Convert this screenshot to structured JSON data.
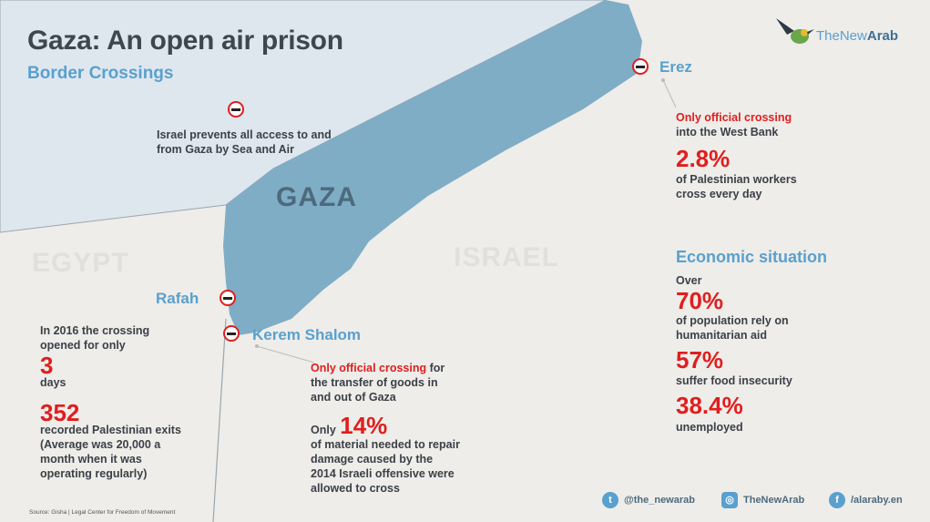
{
  "title": "Gaza: An open air prison",
  "subtitle": "Border Crossings",
  "logo": {
    "text_a": "TheNew",
    "text_b": "Arab"
  },
  "map_labels": {
    "gaza": "GAZA",
    "egypt": "EGYPT",
    "israel": "ISRAEL"
  },
  "sea_air": {
    "line1": "Israel prevents all access to and",
    "line2": "from Gaza by Sea and Air"
  },
  "erez": {
    "name": "Erez",
    "highlight": "Only official crossing",
    "desc": "into the West Bank",
    "stat": "2.8%",
    "stat_line1": "of Palestinian workers",
    "stat_line2": "cross every day"
  },
  "rafah": {
    "name": "Rafah",
    "line1": "In 2016 the crossing",
    "line2": "opened for only",
    "days_value": "3",
    "days_label": "days",
    "exits_value": "352",
    "exits_lines": [
      "recorded Palestinian exits",
      "(Average was 20,000 a",
      "month when it was",
      "operating regularly)"
    ]
  },
  "kerem": {
    "name": "Kerem Shalom",
    "highlight": "Only official crossing",
    "desc_first_suffix": " for",
    "desc_lines": [
      "the transfer of goods in",
      "and out of Gaza"
    ],
    "only_prefix": "Only",
    "stat": "14%",
    "stat_lines": [
      "of material needed to repair",
      "damage caused by the",
      "2014 Israeli offensive were",
      "allowed to cross"
    ]
  },
  "economic": {
    "heading": "Economic situation",
    "over": "Over",
    "stat1": "70%",
    "stat1_lines": [
      "of population rely on",
      "humanitarian aid"
    ],
    "stat2": "57%",
    "stat2_label": "suffer food insecurity",
    "stat3": "38.4%",
    "stat3_label": "unemployed"
  },
  "social": {
    "twitter": "@the_newarab",
    "instagram": "TheNewArab",
    "facebook": "/alaraby.en"
  },
  "source": "Source: Gisha | Legal Center for Freedom of Movement",
  "colors": {
    "sea": "#dfe7ee",
    "gaza": "#7fadc6",
    "land": "#eeede9",
    "accent_red": "#e01e1e",
    "accent_blue": "#5aa0cf"
  }
}
